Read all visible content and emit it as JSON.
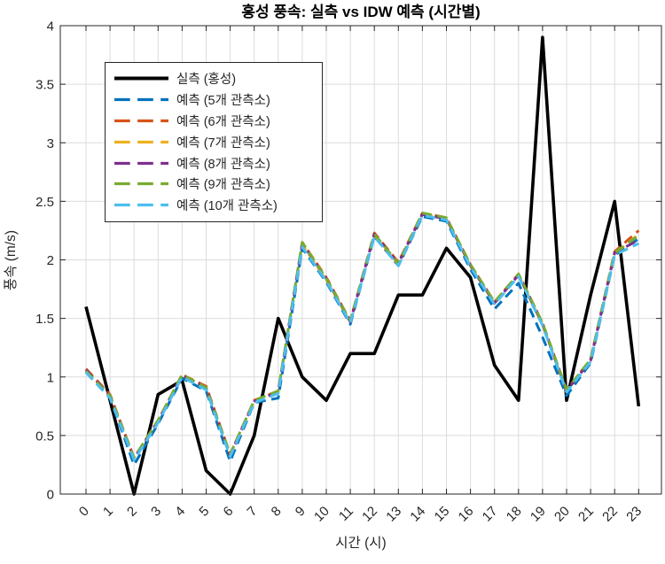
{
  "chart_data": {
    "type": "line",
    "title": "홍성 풍속: 실측 vs IDW 예측 (시간별)",
    "xlabel": "시간 (시)",
    "ylabel": "풍속 (m/s)",
    "x": [
      0,
      1,
      2,
      3,
      4,
      5,
      6,
      7,
      8,
      9,
      10,
      11,
      12,
      13,
      14,
      15,
      16,
      17,
      18,
      19,
      20,
      21,
      22,
      23
    ],
    "x_tick_labels": [
      "0",
      "1",
      "2",
      "3",
      "4",
      "5",
      "6",
      "7",
      "8",
      "9",
      "10",
      "11",
      "12",
      "13",
      "14",
      "15",
      "16",
      "17",
      "18",
      "19",
      "20",
      "21",
      "22",
      "23"
    ],
    "y_ticks": [
      0,
      0.5,
      1,
      1.5,
      2,
      2.5,
      3,
      3.5,
      4
    ],
    "y_tick_labels": [
      "0",
      "0.5",
      "1",
      "1.5",
      "2",
      "2.5",
      "3",
      "3.5",
      "4"
    ],
    "ylim": [
      0,
      4
    ],
    "xlim": [
      -1.07,
      23.95
    ],
    "grid": true,
    "legend_position": "upper-left",
    "axis_color": "#262626",
    "grid_color": "#dcdcdc",
    "series": [
      {
        "name": "실측 (홍성)",
        "color": "#000000",
        "style": "solid",
        "width": 3.6,
        "values": [
          1.6,
          0.8,
          0.0,
          0.85,
          0.97,
          0.2,
          0.0,
          0.5,
          1.5,
          1.0,
          0.8,
          1.2,
          1.2,
          1.7,
          1.7,
          2.1,
          1.85,
          1.1,
          0.8,
          3.9,
          0.8,
          1.7,
          2.5,
          0.75
        ]
      },
      {
        "name": "예측 (5개 관측소)",
        "color": "#0072BD",
        "style": "dashed",
        "width": 3,
        "values": [
          1.04,
          0.82,
          0.25,
          0.6,
          0.99,
          0.88,
          0.28,
          0.78,
          0.82,
          2.1,
          1.81,
          1.45,
          2.2,
          1.95,
          2.37,
          2.33,
          1.92,
          1.58,
          1.8,
          1.34,
          0.84,
          1.12,
          2.04,
          2.18
        ]
      },
      {
        "name": "예측 (6개 관측소)",
        "color": "#D95319",
        "style": "dashed",
        "width": 3,
        "values": [
          1.07,
          0.85,
          0.31,
          0.63,
          1.02,
          0.92,
          0.34,
          0.8,
          0.88,
          2.15,
          1.85,
          1.48,
          2.23,
          1.98,
          2.4,
          2.36,
          1.96,
          1.64,
          1.88,
          1.46,
          0.89,
          1.15,
          2.07,
          2.25
        ]
      },
      {
        "name": "예측 (7개 관측소)",
        "color": "#EDB120",
        "style": "dashed",
        "width": 3,
        "values": [
          1.05,
          0.83,
          0.3,
          0.62,
          1.01,
          0.9,
          0.33,
          0.79,
          0.87,
          2.13,
          1.83,
          1.47,
          2.21,
          1.96,
          2.39,
          2.35,
          1.95,
          1.63,
          1.87,
          1.45,
          0.88,
          1.14,
          2.05,
          2.22
        ]
      },
      {
        "name": "예측 (8개 관측소)",
        "color": "#7E2F8E",
        "style": "dashed",
        "width": 3,
        "values": [
          1.06,
          0.84,
          0.3,
          0.62,
          1.01,
          0.91,
          0.33,
          0.79,
          0.87,
          2.14,
          1.84,
          1.47,
          2.22,
          1.97,
          2.39,
          2.35,
          1.95,
          1.63,
          1.87,
          1.45,
          0.88,
          1.14,
          2.06,
          2.17
        ]
      },
      {
        "name": "예측 (9개 관측소)",
        "color": "#77AC30",
        "style": "dashed",
        "width": 3,
        "values": [
          1.05,
          0.84,
          0.31,
          0.63,
          1.02,
          0.91,
          0.34,
          0.8,
          0.88,
          2.15,
          1.84,
          1.48,
          2.22,
          1.97,
          2.4,
          2.36,
          1.96,
          1.64,
          1.88,
          1.46,
          0.89,
          1.15,
          2.06,
          2.21
        ]
      },
      {
        "name": "예측 (10개 관측소)",
        "color": "#4DBEEE",
        "style": "dashed",
        "width": 3,
        "values": [
          1.04,
          0.82,
          0.29,
          0.61,
          1.0,
          0.89,
          0.32,
          0.78,
          0.86,
          2.11,
          1.82,
          1.46,
          2.2,
          1.95,
          2.38,
          2.34,
          1.94,
          1.62,
          1.86,
          1.44,
          0.87,
          1.13,
          2.04,
          2.14
        ]
      }
    ]
  }
}
